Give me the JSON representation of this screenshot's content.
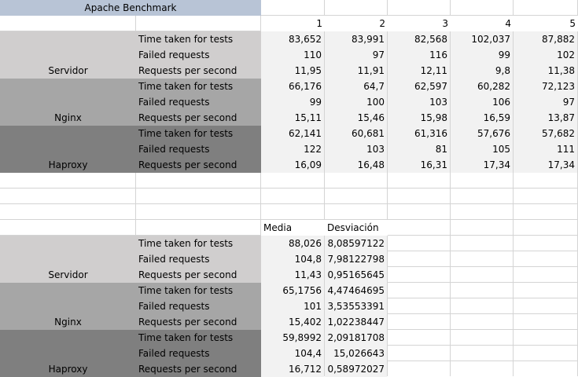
{
  "title": "Apache Benchmark",
  "run_numbers": [
    "1",
    "2",
    "3",
    "4",
    "5"
  ],
  "metrics": [
    "Time taken for tests",
    "Failed requests",
    "Requests per second"
  ],
  "colors": {
    "title_bg": "#b8c4d6",
    "servidor_bg": "#d0cece",
    "nginx_bg": "#a6a6a6",
    "haproxy_bg": "#7f7f7f",
    "data_bg": "#f2f2f2"
  },
  "groups": [
    {
      "name": "Servidor",
      "rows": [
        [
          "83,652",
          "83,991",
          "82,568",
          "102,037",
          "87,882"
        ],
        [
          "110",
          "97",
          "116",
          "99",
          "102"
        ],
        [
          "11,95",
          "11,91",
          "12,11",
          "9,8",
          "11,38"
        ]
      ]
    },
    {
      "name": "Nginx",
      "rows": [
        [
          "66,176",
          "64,7",
          "62,597",
          "60,282",
          "72,123"
        ],
        [
          "99",
          "100",
          "103",
          "106",
          "97"
        ],
        [
          "15,11",
          "15,46",
          "15,98",
          "16,59",
          "13,87"
        ]
      ]
    },
    {
      "name": "Haproxy",
      "rows": [
        [
          "62,141",
          "60,681",
          "61,316",
          "57,676",
          "57,682"
        ],
        [
          "122",
          "103",
          "81",
          "105",
          "111"
        ],
        [
          "16,09",
          "16,48",
          "16,31",
          "17,34",
          "17,34"
        ]
      ]
    }
  ],
  "stats_headers": [
    "Media",
    "Desviación"
  ],
  "stats": [
    {
      "name": "Servidor",
      "rows": [
        [
          "88,026",
          "8,08597122"
        ],
        [
          "104,8",
          "7,98122798"
        ],
        [
          "11,43",
          "0,95165645"
        ]
      ]
    },
    {
      "name": "Nginx",
      "rows": [
        [
          "65,1756",
          "4,47464695"
        ],
        [
          "101",
          "3,53553391"
        ],
        [
          "15,402",
          "1,02238447"
        ]
      ]
    },
    {
      "name": "Haproxy",
      "rows": [
        [
          "59,8992",
          "2,09181708"
        ],
        [
          "104,4",
          "15,026643"
        ],
        [
          "16,712",
          "0,58972027"
        ]
      ]
    }
  ]
}
